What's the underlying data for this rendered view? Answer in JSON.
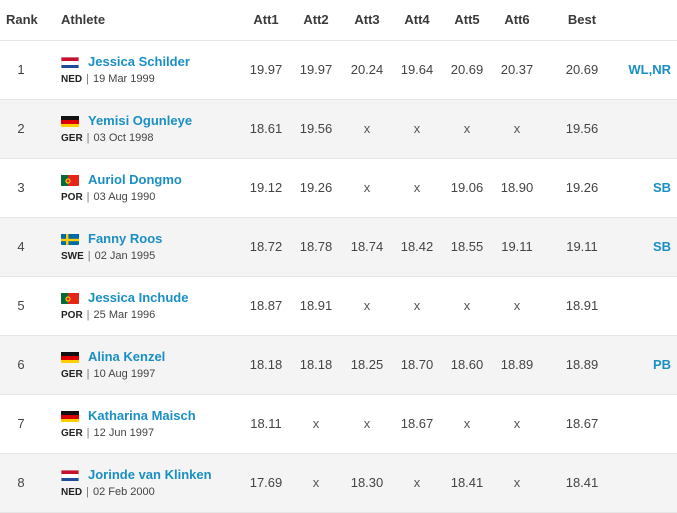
{
  "headers": {
    "rank": "Rank",
    "athlete": "Athlete",
    "att1": "Att1",
    "att2": "Att2",
    "att3": "Att3",
    "att4": "Att4",
    "att5": "Att5",
    "att6": "Att6",
    "best": "Best"
  },
  "rows": [
    {
      "rank": "1",
      "name": "Jessica Schilder",
      "flag": "netherlands-flag-icon",
      "country": "NED",
      "dob": "19 Mar 1999",
      "attempts": [
        "19.97",
        "19.97",
        "20.24",
        "19.64",
        "20.69",
        "20.37"
      ],
      "best": "20.69",
      "record": "WL,NR"
    },
    {
      "rank": "2",
      "name": "Yemisi Ogunleye",
      "flag": "germany-flag-icon",
      "country": "GER",
      "dob": "03 Oct 1998",
      "attempts": [
        "18.61",
        "19.56",
        "x",
        "x",
        "x",
        "x"
      ],
      "best": "19.56",
      "record": ""
    },
    {
      "rank": "3",
      "name": "Auriol Dongmo",
      "flag": "portugal-flag-icon",
      "country": "POR",
      "dob": "03 Aug 1990",
      "attempts": [
        "19.12",
        "19.26",
        "x",
        "x",
        "19.06",
        "18.90"
      ],
      "best": "19.26",
      "record": "SB"
    },
    {
      "rank": "4",
      "name": "Fanny Roos",
      "flag": "sweden-flag-icon",
      "country": "SWE",
      "dob": "02 Jan 1995",
      "attempts": [
        "18.72",
        "18.78",
        "18.74",
        "18.42",
        "18.55",
        "19.11"
      ],
      "best": "19.11",
      "record": "SB"
    },
    {
      "rank": "5",
      "name": "Jessica Inchude",
      "flag": "portugal-flag-icon",
      "country": "POR",
      "dob": "25 Mar 1996",
      "attempts": [
        "18.87",
        "18.91",
        "x",
        "x",
        "x",
        "x"
      ],
      "best": "18.91",
      "record": ""
    },
    {
      "rank": "6",
      "name": "Alina Kenzel",
      "flag": "germany-flag-icon",
      "country": "GER",
      "dob": "10 Aug 1997",
      "attempts": [
        "18.18",
        "18.18",
        "18.25",
        "18.70",
        "18.60",
        "18.89"
      ],
      "best": "18.89",
      "record": "PB"
    },
    {
      "rank": "7",
      "name": "Katharina Maisch",
      "flag": "germany-flag-icon",
      "country": "GER",
      "dob": "12 Jun 1997",
      "attempts": [
        "18.11",
        "x",
        "x",
        "18.67",
        "x",
        "x"
      ],
      "best": "18.67",
      "record": ""
    },
    {
      "rank": "8",
      "name": "Jorinde van Klinken",
      "flag": "netherlands-flag-icon",
      "country": "NED",
      "dob": "02 Feb 2000",
      "attempts": [
        "17.69",
        "x",
        "18.30",
        "x",
        "18.41",
        "x"
      ],
      "best": "18.41",
      "record": ""
    }
  ],
  "colors": {
    "link": "#1a8fc4",
    "row_alt": "#f4f4f4",
    "divider": "#e6e6e6"
  }
}
